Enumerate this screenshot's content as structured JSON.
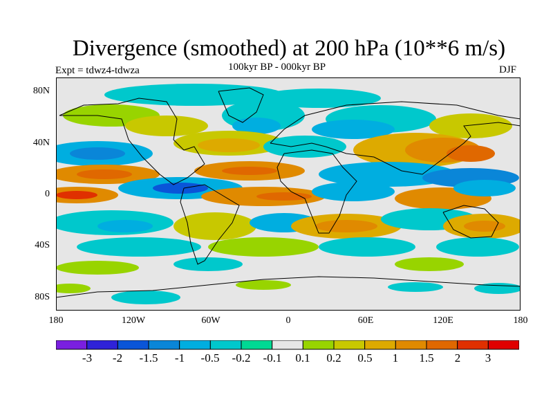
{
  "title": "Divergence (smoothed) at 200 hPa (10**6 m/s)",
  "subtitle": "100kyr BP - 000kyr BP",
  "experiment": "Expt = tdwz4-tdwza",
  "season": "DJF",
  "lat_labels": [
    "80N",
    "40N",
    "0",
    "40S",
    "80S"
  ],
  "lon_labels": [
    "180",
    "120W",
    "60W",
    "0",
    "60E",
    "120E",
    "180"
  ],
  "colorbar": {
    "colors": [
      "#7a1fe0",
      "#2f22d8",
      "#0a55d8",
      "#0a86d8",
      "#00aee0",
      "#00c8cc",
      "#00d994",
      "#e6e6e6",
      "#98d400",
      "#c8c800",
      "#ddaa00",
      "#e08a00",
      "#e06800",
      "#e03000",
      "#e00000"
    ],
    "labels": [
      "-3",
      "-2",
      "-1.5",
      "-1",
      "-0.5",
      "-0.2",
      "-0.1",
      "0.1",
      "0.2",
      "0.5",
      "1",
      "1.5",
      "2",
      "3"
    ]
  }
}
